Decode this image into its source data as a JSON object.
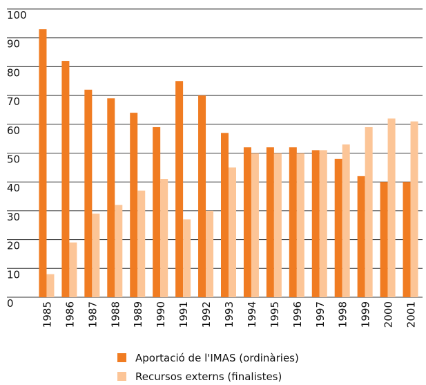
{
  "chart_data": {
    "type": "bar",
    "categories": [
      "1985",
      "1986",
      "1987",
      "1988",
      "1989",
      "1990",
      "1991",
      "1992",
      "1993",
      "1994",
      "1995",
      "1996",
      "1997",
      "1998",
      "1999",
      "2000",
      "2001"
    ],
    "series": [
      {
        "name": "Aportació de l'IMAS (ordinàries)",
        "color": "#f07c22",
        "values": [
          93,
          82,
          72,
          69,
          64,
          59,
          75,
          70,
          57,
          52,
          52,
          52,
          51,
          48,
          42,
          40,
          40
        ]
      },
      {
        "name": "Recursos externs (finalistes)",
        "color": "#fcc597",
        "values": [
          8,
          19,
          29,
          32,
          37,
          41,
          27,
          30,
          45,
          50,
          50,
          50,
          51,
          53,
          59,
          62,
          61
        ]
      }
    ],
    "ylim": [
      0,
      100
    ],
    "yticks": [
      0,
      10,
      20,
      30,
      40,
      50,
      60,
      70,
      80,
      90,
      100
    ],
    "grid": true
  }
}
